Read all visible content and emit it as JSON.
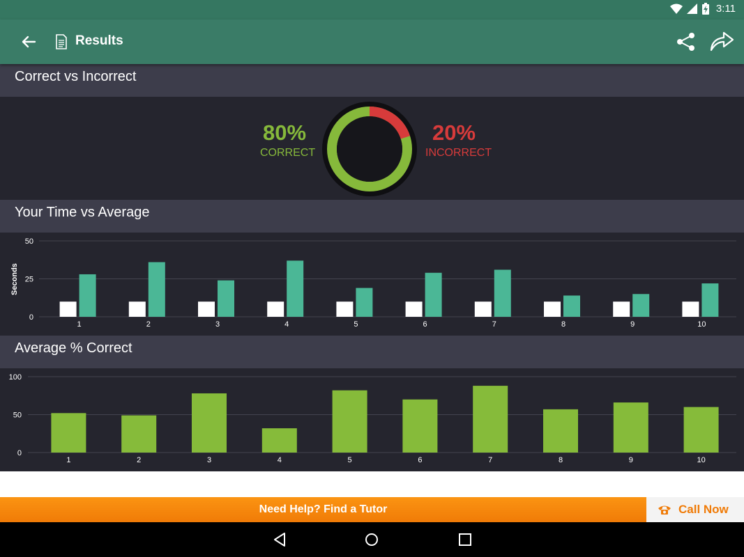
{
  "status_bar": {
    "time": "3:11",
    "icons": [
      "wifi-icon",
      "signal-icon",
      "battery-charging-icon"
    ]
  },
  "app_bar": {
    "title": "Results",
    "icons": [
      "back-arrow-icon",
      "document-icon",
      "share-icon",
      "forward-icon"
    ]
  },
  "sections": {
    "correct": "Correct vs Incorrect",
    "time": "Your Time vs Average",
    "avg": "Average % Correct"
  },
  "summary": {
    "correct_pct": "80%",
    "correct_label": "CORRECT",
    "incorrect_pct": "20%",
    "incorrect_label": "INCORRECT",
    "correct_value": 80,
    "incorrect_value": 20
  },
  "colors": {
    "correct": "#86b93b",
    "incorrect": "#d73b3b",
    "your_time": "#ffffff",
    "average_time": "#4bb796",
    "avg_correct": "#86bb3a",
    "appbar": "#3a7c67",
    "tutor": "#f6870c"
  },
  "chart_data": [
    {
      "type": "bar",
      "title": "Your Time vs Average",
      "ylabel": "Seconds",
      "categories": [
        "1",
        "2",
        "3",
        "4",
        "5",
        "6",
        "7",
        "8",
        "9",
        "10"
      ],
      "yticks": [
        "0",
        "25",
        "50"
      ],
      "ylim": [
        0,
        50
      ],
      "series": [
        {
          "values": [
            10,
            10,
            10,
            10,
            10,
            10,
            10,
            10,
            10,
            10
          ]
        },
        {
          "values": [
            28,
            36,
            24,
            37,
            19,
            29,
            31,
            14,
            15,
            22
          ]
        }
      ],
      "grid": true
    },
    {
      "type": "bar",
      "title": "Average % Correct",
      "categories": [
        "1",
        "2",
        "3",
        "4",
        "5",
        "6",
        "7",
        "8",
        "9",
        "10"
      ],
      "yticks": [
        "0",
        "50",
        "100"
      ],
      "ylim": [
        0,
        100
      ],
      "values": [
        52,
        49,
        78,
        32,
        82,
        70,
        88,
        57,
        66,
        60
      ],
      "grid": true
    }
  ],
  "tutor_bar": {
    "text": "Need Help? Find a Tutor",
    "call_label": "Call Now"
  },
  "nav": [
    "back-triangle-icon",
    "home-circle-icon",
    "recents-square-icon"
  ]
}
